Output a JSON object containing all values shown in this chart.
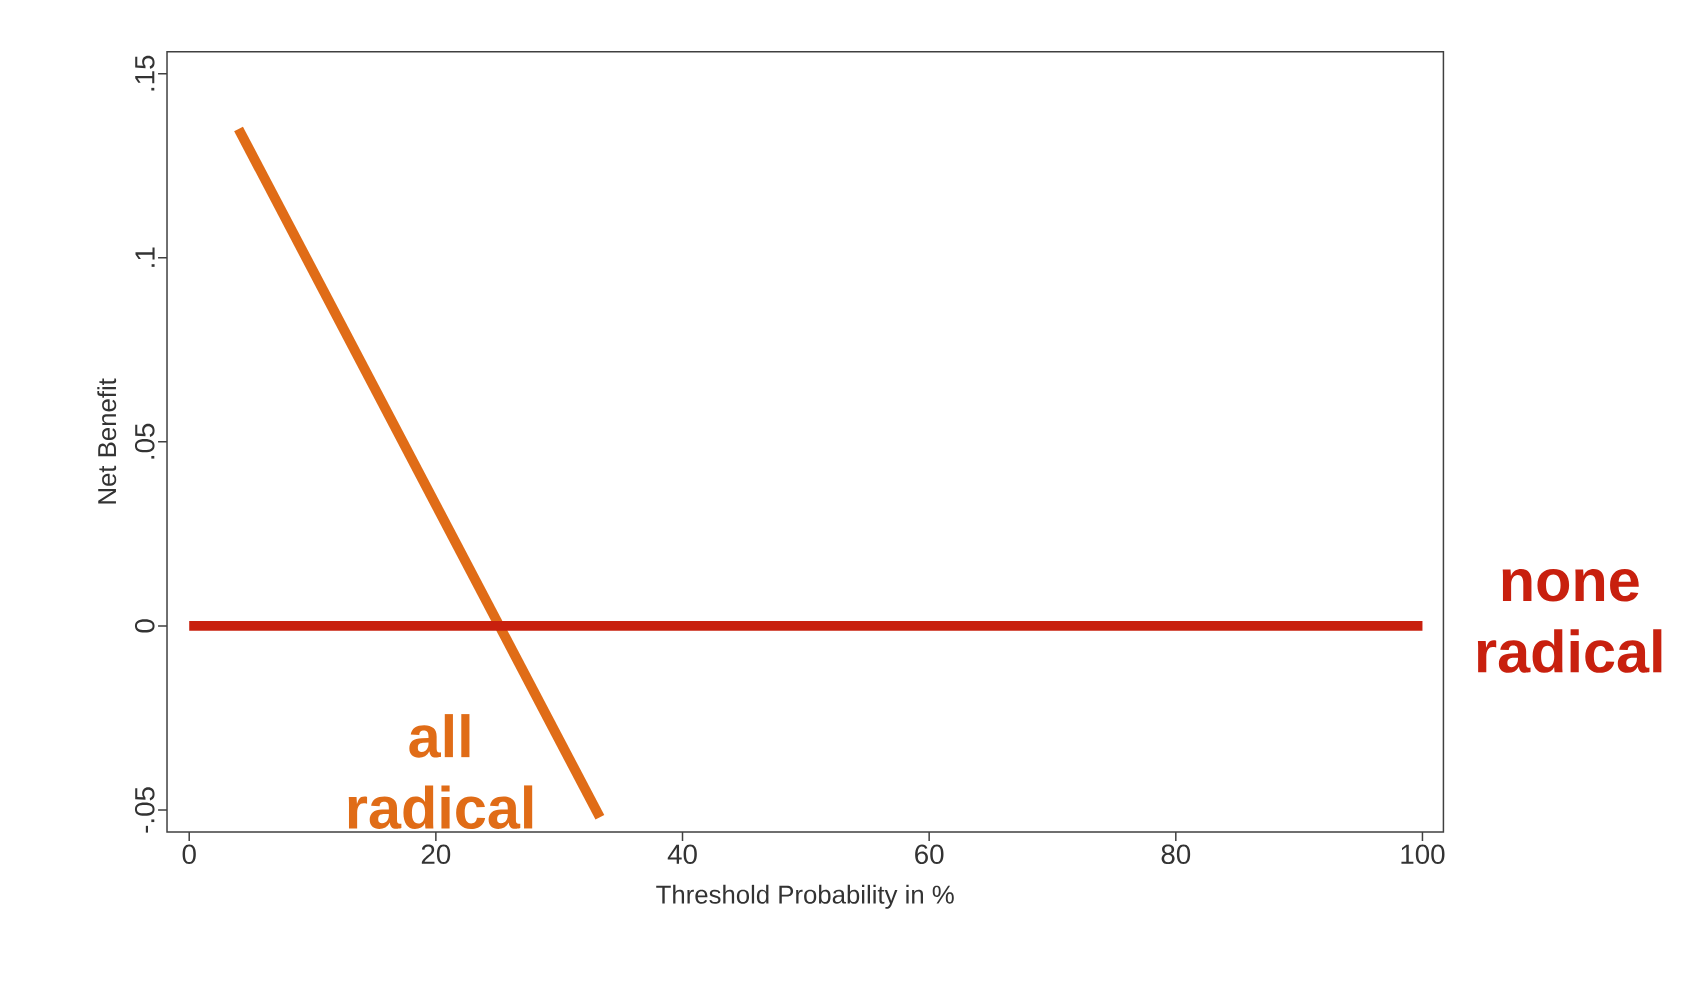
{
  "chart_data": {
    "type": "line",
    "xlabel": "Threshold Probability in %",
    "ylabel": "Net Benefit",
    "xlim": [
      -1.8,
      101.7
    ],
    "ylim": [
      -0.056,
      0.156
    ],
    "xticks": [
      0,
      20,
      40,
      60,
      80,
      100
    ],
    "yticks": [
      {
        "value": -0.05,
        "label": "-.05"
      },
      {
        "value": 0,
        "label": "0"
      },
      {
        "value": 0.05,
        "label": ".05"
      },
      {
        "value": 0.1,
        "label": ".1"
      },
      {
        "value": 0.15,
        "label": ".15"
      }
    ],
    "line_style": "solid",
    "marker": "none",
    "series": [
      {
        "name": "all radical",
        "color": "#e06c17",
        "x": [
          4,
          33.3
        ],
        "values": [
          0.135,
          -0.052
        ]
      },
      {
        "name": "none radical",
        "color": "#c8200e",
        "x": [
          0,
          100
        ],
        "values": [
          0,
          0
        ]
      }
    ]
  }
}
